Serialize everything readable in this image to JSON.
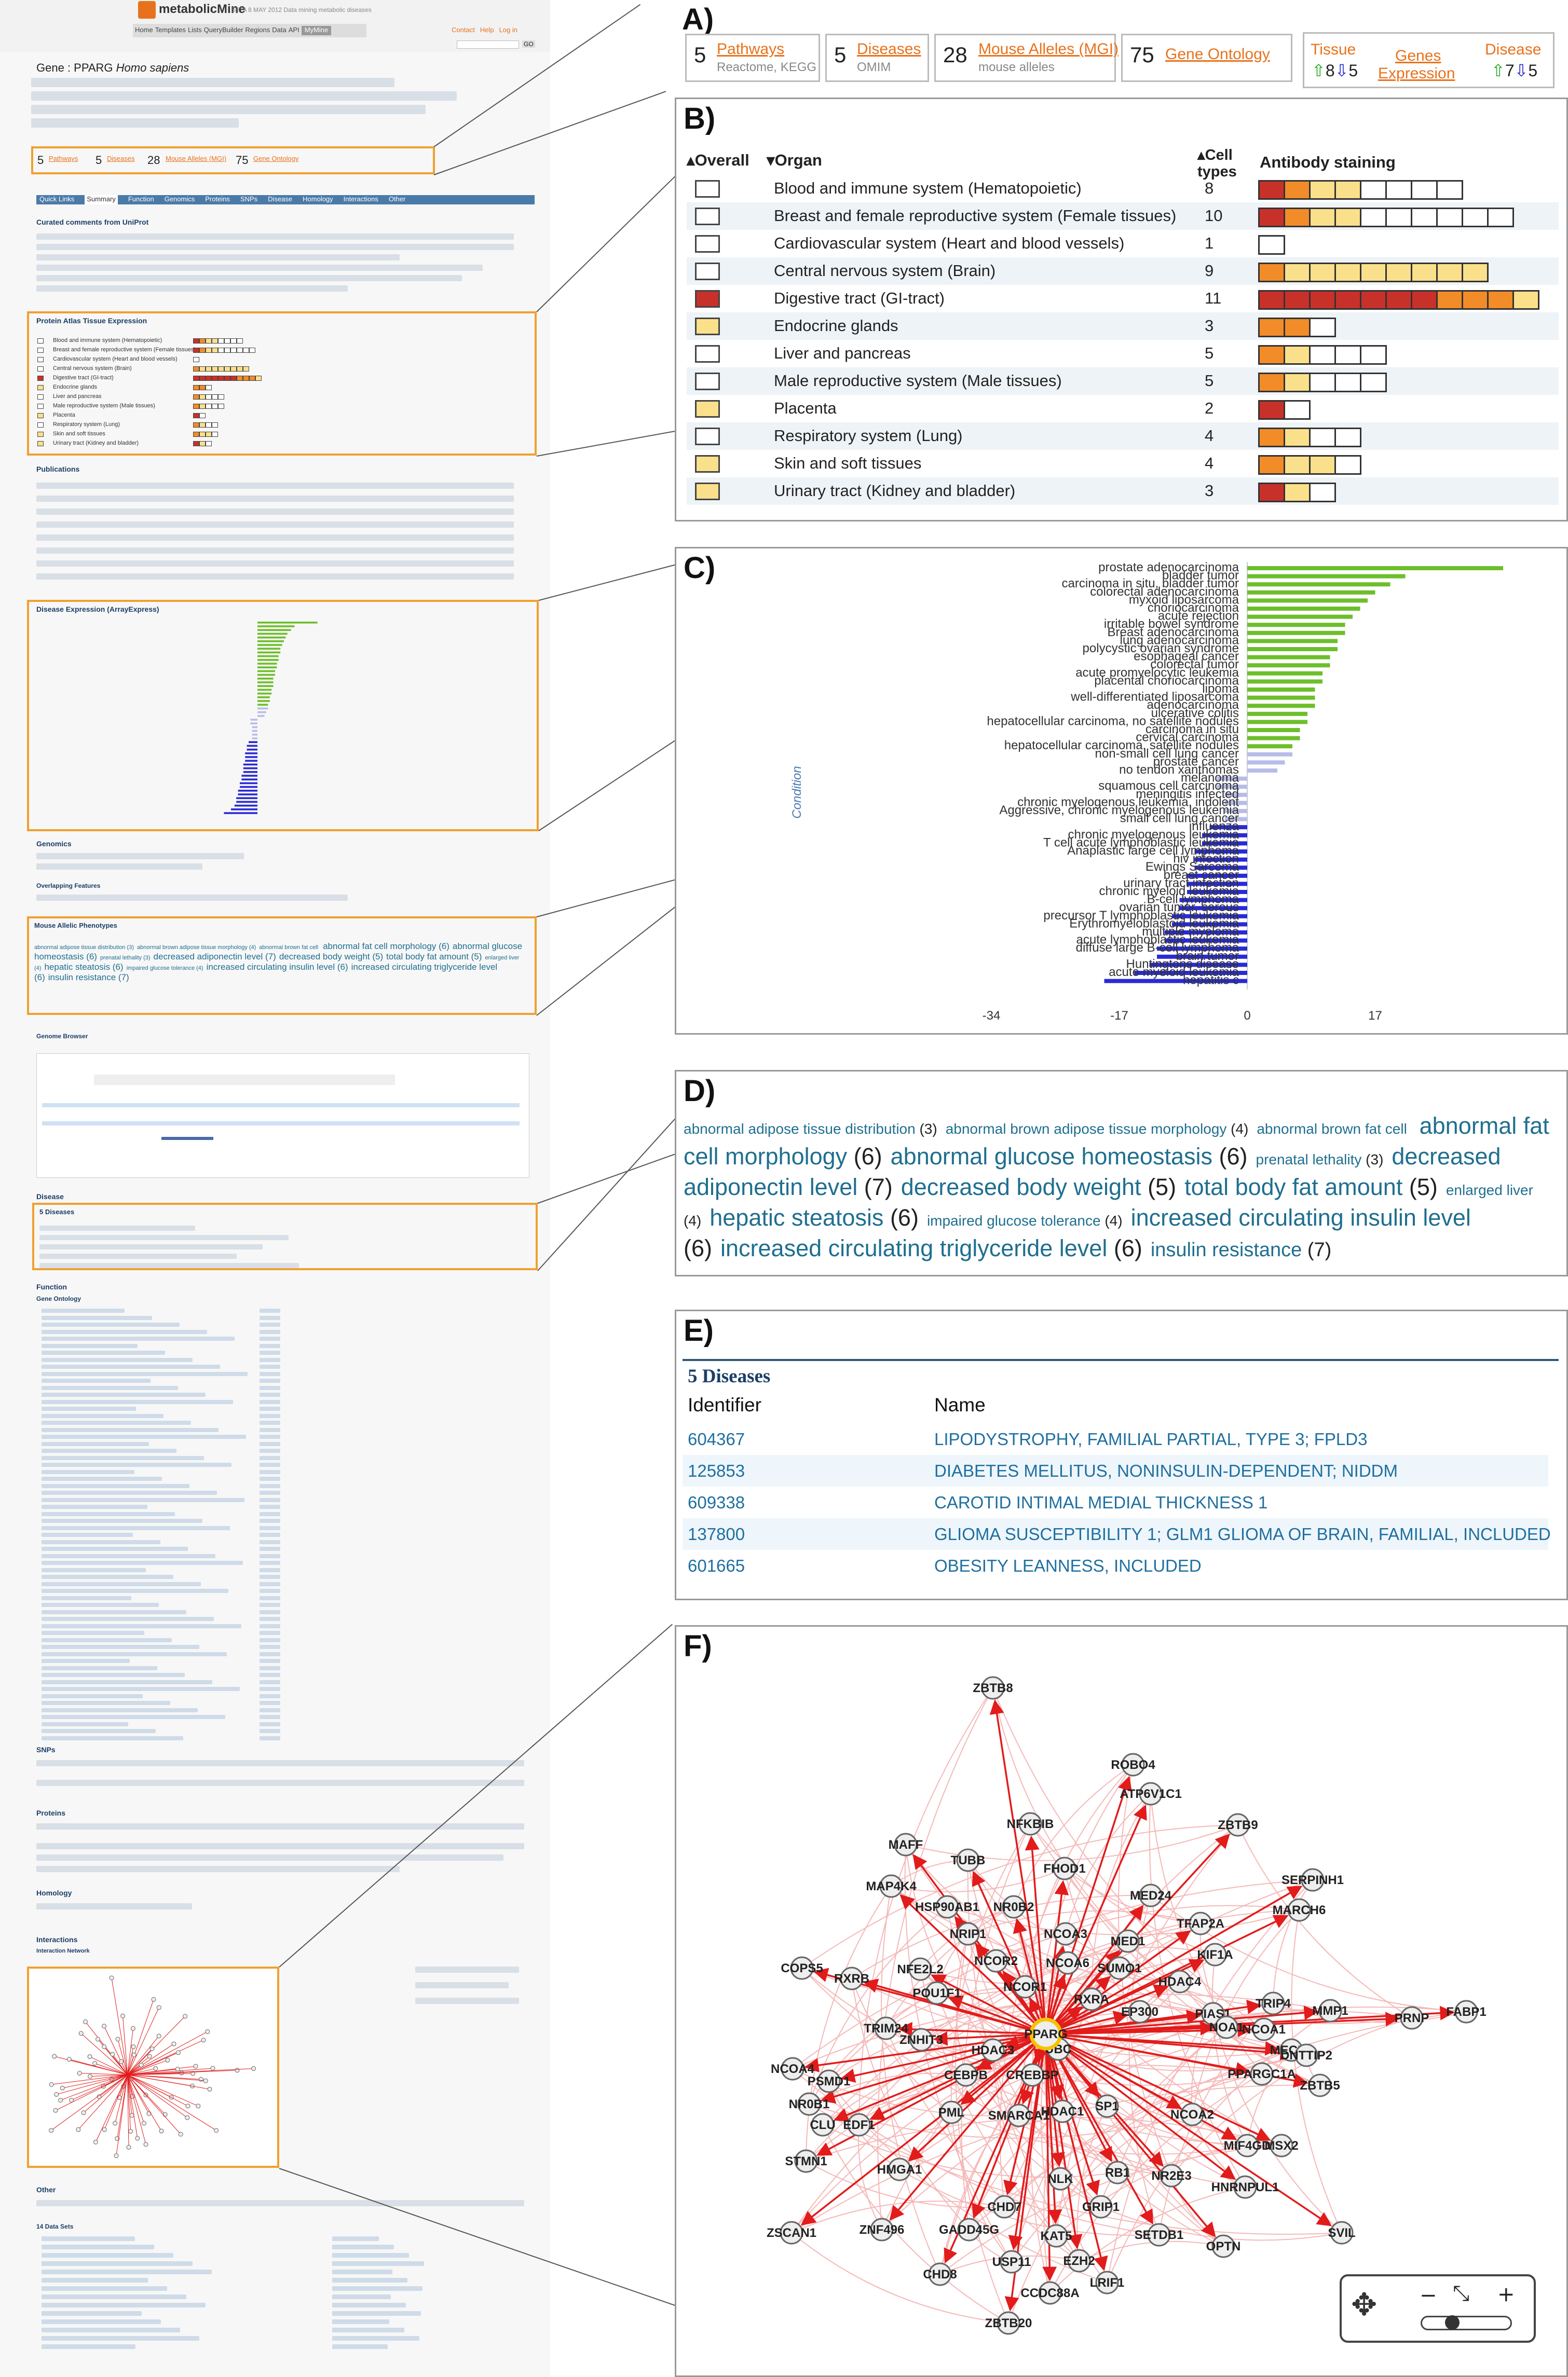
{
  "left": {
    "app_name": "metabolicMine",
    "app_tagline": "BETA 8 MAY 2012  Data mining metabolic diseases",
    "nav": [
      "Home",
      "Templates",
      "Lists",
      "QueryBuilder",
      "Regions",
      "Data",
      "API",
      "MyMine"
    ],
    "header_links": [
      "Contact",
      "Help",
      "Log in"
    ],
    "search_button": "GO",
    "gene_title": "Gene : PPARG",
    "gene_organism": "Homo sapiens",
    "mini": {
      "pathways": "5",
      "pathways_label": "Pathways",
      "diseases": "5",
      "diseases_label": "Diseases",
      "alleles": "28",
      "alleles_label": "Mouse Alleles (MGI)",
      "go": "75",
      "go_label": "Gene Ontology"
    },
    "tabs": [
      "Quick Links",
      "Summary",
      "Function",
      "Genomics",
      "Proteins",
      "SNPs",
      "Disease",
      "Homology",
      "Interactions",
      "Other"
    ],
    "sections": [
      "Curated comments from UniProt",
      "Protein Atlas Tissue Expression",
      "Publications",
      "Disease Expression (ArrayExpress)",
      "Genomics",
      "Overlapping Features",
      "Mouse Allelic Phenotypes",
      "Genome Browser",
      "Disease",
      "5 Diseases",
      "Function",
      "Gene Ontology",
      "SNPs",
      "Proteins",
      "Homology",
      "Interactions",
      "Interaction Network",
      "Other",
      "14 Data Sets"
    ]
  },
  "panelA": {
    "label": "A)",
    "pathways": {
      "count": "5",
      "label": "Pathways",
      "sub": "Reactome, KEGG"
    },
    "diseases": {
      "count": "5",
      "label": "Diseases",
      "sub": "OMIM"
    },
    "alleles": {
      "count": "28",
      "label": "Mouse Alleles (MGI)",
      "sub": "mouse alleles"
    },
    "go": {
      "count": "75",
      "label": "Gene Ontology"
    },
    "expr": {
      "tissue": "Tissue",
      "tissue_up": "8",
      "tissue_down": "5",
      "genes": "Genes",
      "expression": "Expression",
      "disease": "Disease",
      "disease_up": "7",
      "disease_down": "5"
    }
  },
  "panelB": {
    "label": "B)",
    "col_overall": "Overall",
    "col_organ": "Organ",
    "col_cell1": "Cell",
    "col_cell2": "types",
    "col_staining": "Antibody staining",
    "colors": {
      "high": "#c8312a",
      "medium": "#f28c28",
      "low": "#fbe08c",
      "none": "#ffffff"
    },
    "rows": [
      {
        "organ": "Blood and immune system (Hematopoietic)",
        "count": "8",
        "overall": "none",
        "cells": [
          "high",
          "medium",
          "low",
          "low",
          "none",
          "none",
          "none",
          "none"
        ]
      },
      {
        "organ": "Breast and female reproductive system (Female tissues)",
        "count": "10",
        "overall": "none",
        "cells": [
          "high",
          "medium",
          "low",
          "low",
          "none",
          "none",
          "none",
          "none",
          "none",
          "none"
        ]
      },
      {
        "organ": "Cardiovascular system (Heart and blood vessels)",
        "count": "1",
        "overall": "none",
        "cells": [
          "none"
        ]
      },
      {
        "organ": "Central nervous system (Brain)",
        "count": "9",
        "overall": "none",
        "cells": [
          "medium",
          "low",
          "low",
          "low",
          "low",
          "low",
          "low",
          "low",
          "low"
        ]
      },
      {
        "organ": "Digestive tract (GI-tract)",
        "count": "11",
        "overall": "high",
        "cells": [
          "high",
          "high",
          "high",
          "high",
          "high",
          "high",
          "high",
          "medium",
          "medium",
          "medium",
          "low"
        ]
      },
      {
        "organ": "Endocrine glands",
        "count": "3",
        "overall": "low",
        "cells": [
          "medium",
          "medium",
          "none"
        ]
      },
      {
        "organ": "Liver and pancreas",
        "count": "5",
        "overall": "none",
        "cells": [
          "medium",
          "low",
          "none",
          "none",
          "none"
        ]
      },
      {
        "organ": "Male reproductive system (Male tissues)",
        "count": "5",
        "overall": "none",
        "cells": [
          "medium",
          "low",
          "none",
          "none",
          "none"
        ]
      },
      {
        "organ": "Placenta",
        "count": "2",
        "overall": "low",
        "cells": [
          "high",
          "none"
        ]
      },
      {
        "organ": "Respiratory system (Lung)",
        "count": "4",
        "overall": "none",
        "cells": [
          "medium",
          "low",
          "none",
          "none"
        ]
      },
      {
        "organ": "Skin and soft tissues",
        "count": "4",
        "overall": "low",
        "cells": [
          "medium",
          "low",
          "low",
          "none"
        ]
      },
      {
        "organ": "Urinary tract (Kidney and bladder)",
        "count": "3",
        "overall": "low",
        "cells": [
          "high",
          "low",
          "none"
        ]
      }
    ]
  },
  "panelC": {
    "label": "C)"
  },
  "chart_data": {
    "type": "bar",
    "orientation": "horizontal",
    "ylabel": "Condition",
    "xlim": [
      -34,
      34
    ],
    "xticks": [
      "-34",
      "-17",
      "0",
      "17"
    ],
    "categories": [
      "prostate adenocarcinoma",
      "bladder tumor",
      "carcinoma in situ, bladder tumor",
      "colorectal adenocarcinoma",
      "myxoid liposarcoma",
      "choriocarcinoma",
      "acute rejection",
      "irritable bowel syndrome",
      "Breast adenocarcinoma",
      "lung adenocarcinoma",
      "polycystic ovarian syndrome",
      "esophageal cancer",
      "colorectal tumor",
      "acute promyelocytic leukemia",
      "placental choriocarcinoma",
      "lipoma",
      "well-differentiated liposarcoma",
      "adenocarcinoma",
      "ulcerative colitis",
      "hepatocellular carcinoma, no satellite nodules",
      "carcinoma in situ",
      "cervical carcinoma",
      "hepatocellular carcinoma, satellite nodules",
      "non-small cell lung cancer",
      "prostate cancer",
      "no tendon xanthomas",
      "melanoma",
      "squamous cell carcinoma",
      "meningitis infected",
      "chronic myelogenous leukemia, indolent",
      "Aggressive, chronic myelogenous leukemia",
      "small cell lung cancer",
      "influenza",
      "chronic myelogenous leukemia",
      "T cell acute lymphoblastic leukemia",
      "Anaplastic large cell lymphoma",
      "hiv infection",
      "Ewings Sarcoma",
      "breast cancer",
      "urinary tract infection",
      "chronic myeloid leukemia",
      "B-cell lymphoma",
      "ovarian tumor, serous",
      "precursor T lymphoblastic leukemia",
      "Erythromyeloblastoid leukemia",
      "multiple myeloma",
      "acute lymphoblastic leukemia",
      "diffuse large B-cell lymphoma",
      "brain tumor",
      "Huntingtons disease",
      "acute myeloid leukemia",
      "hepatitis c"
    ],
    "values": [
      34,
      21,
      19,
      17,
      16,
      15,
      14,
      13,
      13,
      12,
      12,
      11,
      11,
      10,
      10,
      9,
      9,
      9,
      8,
      8,
      7,
      7,
      6,
      6,
      5,
      4,
      -4,
      -4,
      -3,
      -3,
      -3,
      -3,
      -5,
      -6,
      -6,
      -7,
      -7,
      -7,
      -8,
      -8,
      -8,
      -9,
      -9,
      -10,
      -10,
      -11,
      -11,
      -12,
      -12,
      -13,
      -15,
      -19
    ],
    "status": [
      "up",
      "up",
      "up",
      "up",
      "up",
      "up",
      "up",
      "up",
      "up",
      "up",
      "up",
      "up",
      "up",
      "up",
      "up",
      "up",
      "up",
      "up",
      "up",
      "up",
      "up",
      "up",
      "up",
      "lowconf",
      "lowconf",
      "lowconf",
      "lowconf",
      "lowconf",
      "lowconf",
      "lowconf",
      "lowconf",
      "lowconf",
      "down",
      "down",
      "down",
      "down",
      "down",
      "down",
      "down",
      "down",
      "down",
      "down",
      "down",
      "down",
      "down",
      "down",
      "down",
      "down",
      "down",
      "down",
      "down",
      "down"
    ],
    "colors": {
      "up": "#6cbf2a",
      "down": "#2a2ad6",
      "lowconf": "#b8bce8"
    }
  },
  "panelD": {
    "label": "D)",
    "terms": [
      {
        "term": "abnormal adipose tissue distribution",
        "count": "(3)",
        "size": "s"
      },
      {
        "term": "abnormal brown adipose tissue morphology",
        "count": "(4)",
        "size": "s"
      },
      {
        "term": "abnormal brown fat cell",
        "count": "",
        "size": "s"
      },
      {
        "term": "abnormal fat cell morphology",
        "count": "(6)",
        "size": "l"
      },
      {
        "term": "abnormal glucose homeostasis",
        "count": "(6)",
        "size": "l"
      },
      {
        "term": "prenatal lethality",
        "count": "(3)",
        "size": "s"
      },
      {
        "term": "decreased adiponectin level",
        "count": "(7)",
        "size": "l"
      },
      {
        "term": "decreased body weight",
        "count": "(5)",
        "size": "l"
      },
      {
        "term": "total body fat amount",
        "count": "(5)",
        "size": "l"
      },
      {
        "term": "enlarged liver",
        "count": "(4)",
        "size": "s"
      },
      {
        "term": "hepatic steatosis",
        "count": "(6)",
        "size": "l"
      },
      {
        "term": "impaired glucose tolerance",
        "count": "(4)",
        "size": "s"
      },
      {
        "term": "increased circulating insulin level",
        "count": "(6)",
        "size": "l"
      },
      {
        "term": "increased circulating triglyceride level",
        "count": "(6)",
        "size": "l"
      },
      {
        "term": "insulin resistance",
        "count": "(7)",
        "size": "m"
      }
    ]
  },
  "panelE": {
    "label": "E)",
    "title": "5 Diseases",
    "col_id": "Identifier",
    "col_name": "Name",
    "rows": [
      {
        "id": "604367",
        "name": "LIPODYSTROPHY, FAMILIAL PARTIAL, TYPE 3; FPLD3"
      },
      {
        "id": "125853",
        "name": "DIABETES MELLITUS, NONINSULIN-DEPENDENT; NIDDM"
      },
      {
        "id": "609338",
        "name": "CAROTID INTIMAL MEDIAL THICKNESS 1"
      },
      {
        "id": "137800",
        "name": "GLIOMA SUSCEPTIBILITY 1; GLM1 GLIOMA OF BRAIN, FAMILIAL, INCLUDED"
      },
      {
        "id": "601665",
        "name": "OBESITY LEANNESS, INCLUDED"
      }
    ]
  },
  "panelF": {
    "label": "F)",
    "center": "PPARG",
    "nodes": [
      "ZBTB8",
      "MAFF",
      "ROBO4",
      "NFKBIB",
      "TUBB",
      "ATP6V1C1",
      "ZBTB9",
      "MAP4K4",
      "FHOD1",
      "MED24",
      "SERPINH1",
      "HSP90AB1",
      "NR0B2",
      "NCOA3",
      "TFAP2A",
      "MARCH6",
      "NRIP1",
      "MED1",
      "KIF1A",
      "COPS5",
      "RXRB",
      "NFE2L2",
      "NCOR2",
      "NCOA6",
      "SUMO1",
      "HDAC4",
      "TRIP4",
      "MMP1",
      "POU1F1",
      "NCOR1",
      "RXRA",
      "EP300",
      "PIAS1",
      "NOA1",
      "NCOA1",
      "MECP2",
      "PRNP",
      "FABP1",
      "TRIM24",
      "ZNHIT3",
      "HDAC3",
      "UBC",
      "DNTTIP2",
      "NCOA4",
      "PSMD1",
      "CEBPB",
      "CREBBP",
      "PPARGC1A",
      "ZBTB5",
      "NR0B1",
      "CLU",
      "EDF1",
      "PML",
      "SMARCA1",
      "HDAC1",
      "SP1",
      "NCOA2",
      "MIF4GD",
      "MSX2",
      "STMN1",
      "HMGA1",
      "NLK",
      "RB1",
      "NR2E3",
      "HNRNPUL1",
      "CHD7",
      "GRIP1",
      "ZSCAN1",
      "ZNF496",
      "GADD45G",
      "KAT5",
      "SETDB1",
      "OPTN",
      "SVIL",
      "USP11",
      "EZH2",
      "CHD8",
      "LRIF1",
      "CCDC88A",
      "ZBTB20"
    ]
  }
}
